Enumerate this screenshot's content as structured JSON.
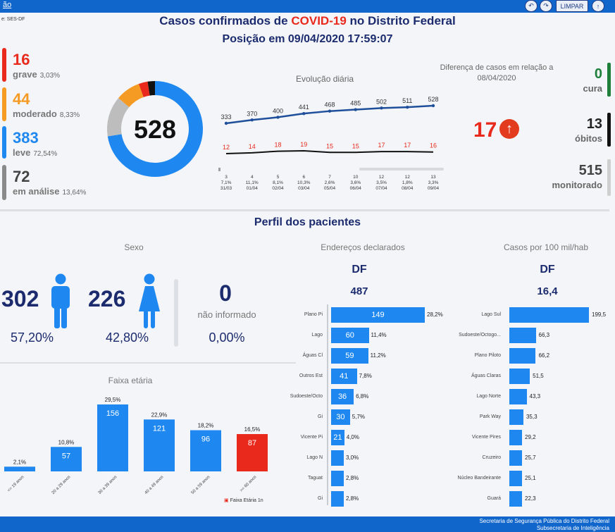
{
  "header": {
    "logo": "ão",
    "source": "e: SES-DF",
    "title_pre": "Casos confirmados de ",
    "title_hl": "COVID-19",
    "title_post": " no Distrito Federal",
    "subtitle": "Posição em 09/04/2020 17:59:07",
    "controls": {
      "clear": "LIMPAR",
      "back": "↶",
      "fwd": "↷",
      "up": "↑"
    }
  },
  "severity": [
    {
      "num": "16",
      "label": "grave",
      "pct": "3,03%",
      "color": "#e8291c"
    },
    {
      "num": "44",
      "label": "moderado",
      "pct": "8,33%",
      "color": "#f59a23"
    },
    {
      "num": "383",
      "label": "leve",
      "pct": "72,54%",
      "color": "#1e88f0"
    },
    {
      "num": "72",
      "label": "em análise",
      "pct": "13,64%",
      "color": "#8a8a8a"
    }
  ],
  "donut": {
    "total": "528",
    "slices": [
      {
        "value": 383,
        "color": "#1e88f0"
      },
      {
        "value": 72,
        "color": "#bdbdbd"
      },
      {
        "value": 44,
        "color": "#f59a23"
      },
      {
        "value": 16,
        "color": "#e8291c"
      },
      {
        "value": 13,
        "color": "#111111"
      }
    ]
  },
  "evolucao": {
    "title": "Evolução diária",
    "series_total": [
      333,
      370,
      400,
      441,
      468,
      485,
      502,
      511,
      528
    ],
    "series_grave": [
      12,
      14,
      18,
      19,
      15,
      15,
      17,
      17,
      16
    ],
    "x_top": [
      "3",
      "4",
      "5",
      "6",
      "7",
      "10",
      "12",
      "12",
      "13"
    ],
    "x_mid": [
      "7,1%",
      "11,1%",
      "8,1%",
      "10,3%",
      "2,6%",
      "3,6%",
      "3,5%",
      "1,8%",
      "3,3%"
    ],
    "x_date": [
      "31/03",
      "01/04",
      "02/04",
      "03/04",
      "05/04",
      "06/04",
      "07/04",
      "08/04",
      "09/04"
    ]
  },
  "diferenca": {
    "label": "Diferença de casos em relação a 08/04/2020",
    "value": "17",
    "arrow": "↑"
  },
  "right_stats": [
    {
      "num": "0",
      "label": "cura",
      "color": "#1e7f3a",
      "num_color": "#1e7f3a"
    },
    {
      "num": "13",
      "label": "óbitos",
      "color": "#111111",
      "num_color": "#222222"
    },
    {
      "num": "515",
      "label": "monitorado",
      "color": "#cfcfcf",
      "num_color": "#444444"
    }
  ],
  "perfil": {
    "title": "Perfil dos pacientes"
  },
  "sexo": {
    "title": "Sexo",
    "male": {
      "num": "302",
      "pct": "57,20%"
    },
    "female": {
      "num": "226",
      "pct": "42,80%"
    },
    "none": {
      "num": "0",
      "label": "não informado",
      "pct": "0,00%"
    }
  },
  "enderecos": {
    "title": "Endereços declarados",
    "scope": "DF",
    "total": "487",
    "rows": [
      {
        "cat": "Plano Pi",
        "value": 149,
        "pct": "28,2%"
      },
      {
        "cat": "Lago",
        "value": 60,
        "pct": "11,4%"
      },
      {
        "cat": "Águas Cl",
        "value": 59,
        "pct": "11,2%"
      },
      {
        "cat": "Outros Est",
        "value": 41,
        "pct": "7,8%"
      },
      {
        "cat": "Sudoeste/Octo",
        "value": 36,
        "pct": "6,8%"
      },
      {
        "cat": "Gi",
        "value": 30,
        "pct": "5,7%"
      },
      {
        "cat": "Vicente Pi",
        "value": 21,
        "pct": "4,0%"
      },
      {
        "cat": "Lago N",
        "value": 16,
        "pct": "3,0%"
      },
      {
        "cat": "Taguat",
        "value": 15,
        "pct": "2,8%"
      },
      {
        "cat": "Gi",
        "value": 15,
        "pct": "2,8%"
      }
    ]
  },
  "casos100": {
    "title": "Casos por 100 mil/hab",
    "scope": "DF",
    "total": "16,4",
    "rows": [
      {
        "cat": "Lago Sul",
        "value": 199.5,
        "label": "199,5"
      },
      {
        "cat": "Sudoeste/Octogo...",
        "value": 66.3,
        "label": "66,3"
      },
      {
        "cat": "Plano Piloto",
        "value": 66.2,
        "label": "66,2"
      },
      {
        "cat": "Águas Claras",
        "value": 51.5,
        "label": "51,5"
      },
      {
        "cat": "Lago Norte",
        "value": 43.3,
        "label": "43,3"
      },
      {
        "cat": "Park Way",
        "value": 35.3,
        "label": "35,3"
      },
      {
        "cat": "Vicente Pires",
        "value": 29.2,
        "label": "29,2"
      },
      {
        "cat": "Cruzeiro",
        "value": 25.7,
        "label": "25,7"
      },
      {
        "cat": "Núcleo Bandeirante",
        "value": 25.1,
        "label": "25,1"
      },
      {
        "cat": "Guará",
        "value": 22.3,
        "label": "22,3"
      }
    ]
  },
  "faixa": {
    "title": "Faixa etária",
    "legend": "Faixa Etária 1n",
    "bars": [
      {
        "cat": "<= 19 anos",
        "value": 11,
        "label": "",
        "pct": "2,1%",
        "color": "#1e88f0"
      },
      {
        "cat": "20 a 29 anos",
        "value": 57,
        "label": "57",
        "pct": "10,8%",
        "color": "#1e88f0"
      },
      {
        "cat": "30 a 39 anos",
        "value": 156,
        "label": "156",
        "pct": "29,5%",
        "color": "#1e88f0"
      },
      {
        "cat": "40 a 49 anos",
        "value": 121,
        "label": "121",
        "pct": "22,9%",
        "color": "#1e88f0"
      },
      {
        "cat": "50 a 59 anos",
        "value": 96,
        "label": "96",
        "pct": "18,2%",
        "color": "#1e88f0"
      },
      {
        "cat": ">= 60 anos",
        "value": 87,
        "label": "87",
        "pct": "16,5%",
        "color": "#e8291c"
      }
    ]
  },
  "footer": {
    "line1": "Secretaria de Segurança Pública do Distrito Federal",
    "line2": "Subsecretaria de Inteligência"
  },
  "chart_data": [
    {
      "type": "line",
      "title": "Evolução diária",
      "x": [
        "31/03",
        "01/04",
        "02/04",
        "03/04",
        "05/04",
        "06/04",
        "07/04",
        "08/04",
        "09/04"
      ],
      "series": [
        {
          "values": [
            333,
            370,
            400,
            441,
            468,
            485,
            502,
            511,
            528
          ]
        },
        {
          "values": [
            12,
            14,
            18,
            19,
            15,
            15,
            17,
            17,
            16
          ]
        }
      ]
    },
    {
      "type": "bar",
      "title": "Faixa etária",
      "categories": [
        "<= 19 anos",
        "20 a 29 anos",
        "30 a 39 anos",
        "40 a 49 anos",
        "50 a 59 anos",
        ">= 60 anos"
      ],
      "values": [
        11,
        57,
        156,
        121,
        96,
        87
      ]
    },
    {
      "type": "bar",
      "title": "Endereços declarados",
      "categories": [
        "Plano Pi",
        "Lago",
        "Águas Cl",
        "Outros Est",
        "Sudoeste/Octo",
        "Gi",
        "Vicente Pi",
        "Lago N",
        "Taguat",
        "Gi"
      ],
      "values": [
        149,
        60,
        59,
        41,
        36,
        30,
        21,
        16,
        15,
        15
      ]
    },
    {
      "type": "bar",
      "title": "Casos por 100 mil/hab",
      "categories": [
        "Lago Sul",
        "Sudoeste/Octogo...",
        "Plano Piloto",
        "Águas Claras",
        "Lago Norte",
        "Park Way",
        "Vicente Pires",
        "Cruzeiro",
        "Núcleo Bandeirante",
        "Guará"
      ],
      "values": [
        199.5,
        66.3,
        66.2,
        51.5,
        43.3,
        35.3,
        29.2,
        25.7,
        25.1,
        22.3
      ]
    }
  ]
}
